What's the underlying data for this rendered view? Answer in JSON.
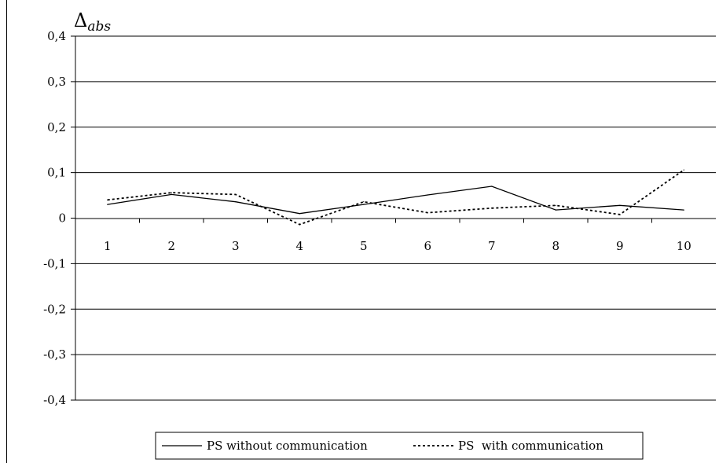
{
  "chart_data": {
    "type": "line",
    "title": "",
    "ylabel_base": "Δ",
    "ylabel_sub": "abs",
    "xlabel": "",
    "categories": [
      "1",
      "2",
      "3",
      "4",
      "5",
      "6",
      "7",
      "8",
      "9",
      "10"
    ],
    "yticks": [
      "0,4",
      "0,3",
      "0,2",
      "0,1",
      "0",
      "-0,1",
      "-0,2",
      "-0,3",
      "-0,4"
    ],
    "ylim": [
      -0.4,
      0.4
    ],
    "grid": "horizontal",
    "legend_position": "bottom",
    "series": [
      {
        "name": "PS without communication",
        "style": "solid",
        "color": "#000000",
        "values": [
          0.03,
          0.052,
          0.036,
          0.01,
          0.03,
          0.051,
          0.07,
          0.018,
          0.028,
          0.018
        ]
      },
      {
        "name": "PS  with communication",
        "style": "dotted",
        "color": "#000000",
        "values": [
          0.04,
          0.056,
          0.052,
          -0.014,
          0.036,
          0.012,
          0.022,
          0.028,
          0.008,
          0.106
        ]
      }
    ]
  }
}
